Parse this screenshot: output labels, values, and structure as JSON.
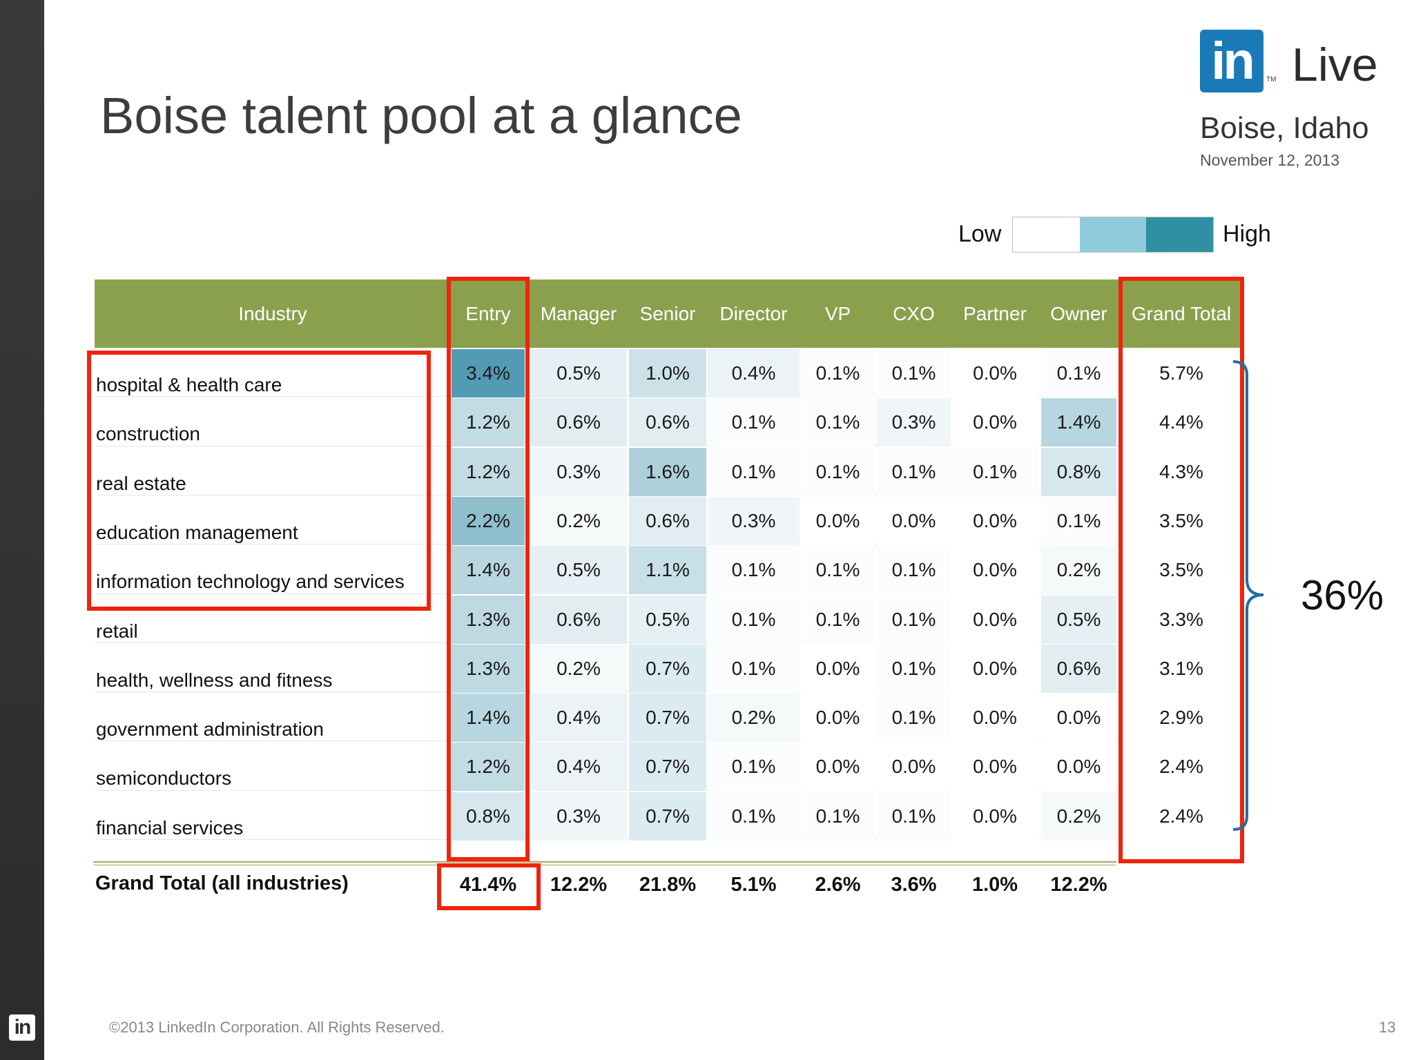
{
  "slide": {
    "title": "Boise talent pool at a glance",
    "page_number": "13",
    "footer": "©2013 LinkedIn Corporation. All Rights Reserved.",
    "side_logo": "in"
  },
  "brand": {
    "logo_text": "in",
    "tm": "TM",
    "live": "Live",
    "city": "Boise, Idaho",
    "date": "November 12, 2013",
    "color": "#1a7ab8"
  },
  "legend": {
    "low": "Low",
    "high": "High",
    "colors": [
      "#ffffff",
      "#8fcbdc",
      "#2f8fa3"
    ]
  },
  "table": {
    "header_color": "#8ba04d",
    "headers": [
      "Industry",
      "Entry",
      "Manager",
      "Senior",
      "Director",
      "VP",
      "CXO",
      "Partner",
      "Owner",
      "Grand Total"
    ],
    "rows": [
      {
        "industry": "hospital & health care",
        "values": [
          "3.4%",
          "0.5%",
          "1.0%",
          "0.4%",
          "0.1%",
          "0.1%",
          "0.0%",
          "0.1%",
          "5.7%"
        ]
      },
      {
        "industry": "construction",
        "values": [
          "1.2%",
          "0.6%",
          "0.6%",
          "0.1%",
          "0.1%",
          "0.3%",
          "0.0%",
          "1.4%",
          "4.4%"
        ]
      },
      {
        "industry": "real estate",
        "values": [
          "1.2%",
          "0.3%",
          "1.6%",
          "0.1%",
          "0.1%",
          "0.1%",
          "0.1%",
          "0.8%",
          "4.3%"
        ]
      },
      {
        "industry": "education management",
        "values": [
          "2.2%",
          "0.2%",
          "0.6%",
          "0.3%",
          "0.0%",
          "0.0%",
          "0.0%",
          "0.1%",
          "3.5%"
        ]
      },
      {
        "industry": "information technology and services",
        "values": [
          "1.4%",
          "0.5%",
          "1.1%",
          "0.1%",
          "0.1%",
          "0.1%",
          "0.0%",
          "0.2%",
          "3.5%"
        ]
      },
      {
        "industry": "retail",
        "values": [
          "1.3%",
          "0.6%",
          "0.5%",
          "0.1%",
          "0.1%",
          "0.1%",
          "0.0%",
          "0.5%",
          "3.3%"
        ]
      },
      {
        "industry": "health, wellness and fitness",
        "values": [
          "1.3%",
          "0.2%",
          "0.7%",
          "0.1%",
          "0.0%",
          "0.1%",
          "0.0%",
          "0.6%",
          "3.1%"
        ]
      },
      {
        "industry": "government administration",
        "values": [
          "1.4%",
          "0.4%",
          "0.7%",
          "0.2%",
          "0.0%",
          "0.1%",
          "0.0%",
          "0.0%",
          "2.9%"
        ]
      },
      {
        "industry": "semiconductors",
        "values": [
          "1.2%",
          "0.4%",
          "0.7%",
          "0.1%",
          "0.0%",
          "0.0%",
          "0.0%",
          "0.0%",
          "2.4%"
        ]
      },
      {
        "industry": "financial services",
        "values": [
          "0.8%",
          "0.3%",
          "0.7%",
          "0.1%",
          "0.1%",
          "0.1%",
          "0.0%",
          "0.2%",
          "2.4%"
        ]
      }
    ],
    "total": {
      "label": "Grand Total (all industries)",
      "values": [
        "41.4%",
        "12.2%",
        "21.8%",
        "5.1%",
        "2.6%",
        "3.6%",
        "1.0%",
        "12.2%"
      ]
    }
  },
  "annotations": {
    "bracket_label": "36%",
    "highlight_color": "#f0240c",
    "bracket_color": "#1f6fa0"
  }
}
